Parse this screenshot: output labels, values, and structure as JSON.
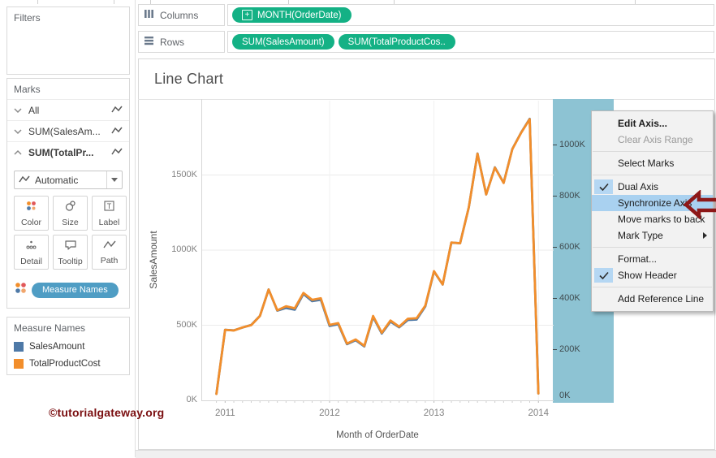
{
  "watermark": "©tutorialgateway.org",
  "shelves": {
    "columns_label": "Columns",
    "rows_label": "Rows",
    "columns_pills": [
      {
        "label": "MONTH(OrderDate)",
        "icon": "plus-box-icon"
      }
    ],
    "rows_pills": [
      {
        "label": "SUM(SalesAmount)"
      },
      {
        "label": "SUM(TotalProductCos.."
      }
    ]
  },
  "sidebar": {
    "filters_title": "Filters",
    "marks_title": "Marks",
    "marks_items": [
      {
        "label": "All",
        "chevron": "down",
        "bold": false
      },
      {
        "label": "SUM(SalesAm...",
        "chevron": "down",
        "bold": false
      },
      {
        "label": "SUM(TotalPr...",
        "chevron": "up",
        "bold": true
      }
    ],
    "mark_type_dropdown": "Automatic",
    "mark_buttons": [
      {
        "label": "Color",
        "icon": "color-icon"
      },
      {
        "label": "Size",
        "icon": "size-icon"
      },
      {
        "label": "Label",
        "icon": "label-icon"
      },
      {
        "label": "Detail",
        "icon": "detail-icon"
      },
      {
        "label": "Tooltip",
        "icon": "tooltip-icon"
      },
      {
        "label": "Path",
        "icon": "path-icon"
      }
    ],
    "measure_names_pill": "Measure Names",
    "legend": {
      "title": "Measure Names",
      "items": [
        {
          "label": "SalesAmount",
          "color": "#4e79a7"
        },
        {
          "label": "TotalProductCost",
          "color": "#f28e2b"
        }
      ]
    }
  },
  "sheet_title": "Line Chart",
  "context_menu": {
    "items": [
      {
        "label": "Edit Axis...",
        "bold": true
      },
      {
        "label": "Clear Axis Range",
        "disabled": true
      },
      {
        "type": "separator"
      },
      {
        "label": "Select Marks"
      },
      {
        "type": "separator"
      },
      {
        "label": "Dual Axis",
        "checked": true
      },
      {
        "label": "Synchronize Axis",
        "highlighted": true
      },
      {
        "label": "Move marks to back"
      },
      {
        "label": "Mark Type",
        "submenu": true
      },
      {
        "type": "separator"
      },
      {
        "label": "Format..."
      },
      {
        "label": "Show Header",
        "checked": true
      },
      {
        "type": "separator"
      },
      {
        "label": "Add Reference Line"
      }
    ]
  },
  "colors": {
    "pill_green": "#14b185",
    "axis_band_blue": "#8dc3d3",
    "menu_highlight": "#a9d1f0",
    "callout_arrow": "#8e1818",
    "watermark_red": "#7a0e10"
  },
  "chart_data": {
    "type": "line",
    "title": "Line Chart",
    "xlabel": "Month of OrderDate",
    "ylabel_left": "SalesAmount",
    "x_tick_labels": [
      "2011",
      "2012",
      "2013",
      "2014"
    ],
    "left_axis": {
      "tick_labels": [
        "0K",
        "500K",
        "1000K",
        "1500K"
      ],
      "tick_values_k": [
        0,
        500,
        1000,
        1500
      ],
      "range_k": [
        0,
        2000
      ]
    },
    "right_axis": {
      "tick_labels": [
        "0K",
        "200K",
        "400K",
        "600K",
        "800K",
        "1000K"
      ],
      "tick_values_k": [
        0,
        200,
        400,
        600,
        800,
        1000
      ],
      "range_k": [
        0,
        1150
      ],
      "highlighted": true
    },
    "x_months": [
      "2010-12",
      "2011-01",
      "2011-02",
      "2011-03",
      "2011-04",
      "2011-05",
      "2011-06",
      "2011-07",
      "2011-08",
      "2011-09",
      "2011-10",
      "2011-11",
      "2011-12",
      "2012-01",
      "2012-02",
      "2012-03",
      "2012-04",
      "2012-05",
      "2012-06",
      "2012-07",
      "2012-08",
      "2012-09",
      "2012-10",
      "2012-11",
      "2012-12",
      "2013-01",
      "2013-02",
      "2013-03",
      "2013-04",
      "2013-05",
      "2013-06",
      "2013-07",
      "2013-08",
      "2013-09",
      "2013-10",
      "2013-11",
      "2013-12",
      "2014-01"
    ],
    "series": [
      {
        "name": "SalesAmount",
        "color": "#4e79a7",
        "axis": "left",
        "values_k": [
          43,
          470,
          466,
          485,
          502,
          562,
          738,
          597,
          615,
          603,
          708,
          660,
          670,
          495,
          507,
          374,
          400,
          359,
          555,
          445,
          524,
          486,
          535,
          538,
          625,
          858,
          771,
          1050,
          1046,
          1285,
          1643,
          1371,
          1551,
          1448,
          1673,
          1781,
          1874,
          46
        ]
      },
      {
        "name": "TotalProductCost",
        "color": "#f28e2b",
        "axis": "right",
        "values_k": [
          25,
          276,
          273,
          285,
          294,
          330,
          433,
          352,
          368,
          360,
          420,
          393,
          399,
          295,
          302,
          222,
          238,
          213,
          330,
          264,
          312,
          288,
          319,
          321,
          370,
          505,
          453,
          617,
          614,
          755,
          964,
          805,
          910,
          850,
          982,
          1045,
          1099,
          27
        ]
      }
    ],
    "grid": {
      "horizontal_at_left_k": [
        500,
        1000,
        1500
      ],
      "vertical_at_years": [
        "2012",
        "2013",
        "2014"
      ]
    },
    "legend_position": "left-bottom-card"
  }
}
